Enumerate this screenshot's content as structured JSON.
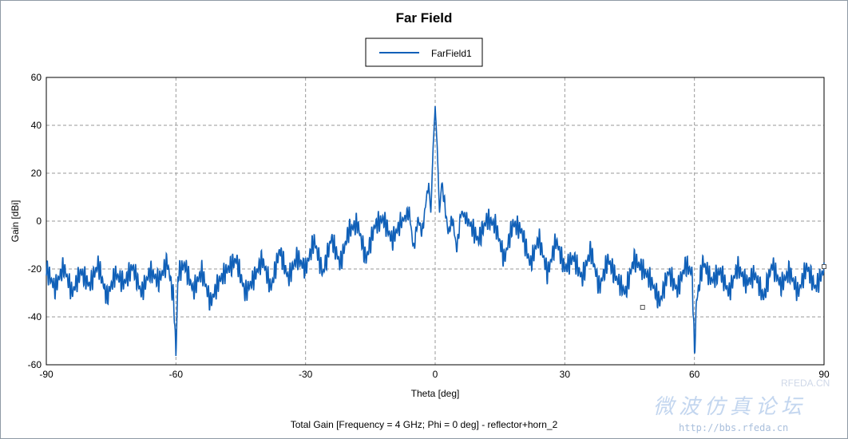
{
  "chart_data": {
    "type": "line",
    "title": "Far Field",
    "xlabel": "Theta [deg]",
    "ylabel": "Gain [dBi]",
    "caption": "Total Gain [Frequency = 4 GHz; Phi = 0 deg] - reflector+horn_2",
    "xlim": [
      -90,
      90
    ],
    "ylim": [
      -60,
      60
    ],
    "xticks": [
      -90,
      -60,
      -30,
      0,
      30,
      60,
      90
    ],
    "yticks": [
      -60,
      -40,
      -20,
      0,
      20,
      40,
      60
    ],
    "grid": true,
    "legend_position": "top-center",
    "series": [
      {
        "name": "FarField1",
        "color": "#1060b8",
        "x": [
          -90,
          -88,
          -86,
          -84,
          -82,
          -80,
          -78,
          -76,
          -74,
          -72,
          -70,
          -68,
          -66,
          -64,
          -62,
          -60.5,
          -60,
          -59.5,
          -58,
          -56,
          -54,
          -52,
          -50,
          -48,
          -46,
          -44,
          -42,
          -40,
          -38,
          -36,
          -34,
          -32,
          -30,
          -28,
          -26,
          -24,
          -22,
          -20,
          -18,
          -16,
          -14,
          -12,
          -10,
          -8,
          -6,
          -5,
          -4,
          -3,
          -2,
          -1.5,
          -1,
          -0.5,
          0,
          0.5,
          1,
          1.5,
          2,
          3,
          4,
          5,
          6,
          8,
          10,
          12,
          14,
          16,
          18,
          20,
          22,
          24,
          26,
          28,
          30,
          32,
          34,
          36,
          38,
          40,
          42,
          44,
          46,
          48,
          50,
          52,
          54,
          56,
          58,
          59.5,
          60,
          60.5,
          62,
          64,
          66,
          68,
          70,
          72,
          74,
          76,
          78,
          80,
          82,
          84,
          86,
          88,
          90
        ],
        "y": [
          -20,
          -28,
          -19,
          -30,
          -21,
          -27,
          -18,
          -32,
          -22,
          -26,
          -19,
          -30,
          -21,
          -25,
          -17,
          -33,
          -56,
          -22,
          -18,
          -29,
          -21,
          -34,
          -25,
          -20,
          -16,
          -30,
          -24,
          -16,
          -28,
          -12,
          -24,
          -15,
          -20,
          -8,
          -22,
          -7,
          -18,
          -4,
          -1,
          -16,
          -2,
          1,
          -8,
          -1,
          4,
          -12,
          1,
          -5,
          10,
          16,
          3,
          30,
          48,
          30,
          3,
          16,
          10,
          -5,
          1,
          -12,
          4,
          -1,
          -8,
          1,
          -2,
          -16,
          -1,
          -4,
          -18,
          -7,
          -22,
          -8,
          -20,
          -15,
          -24,
          -12,
          -28,
          -16,
          -24,
          -30,
          -16,
          -20,
          -25,
          -34,
          -21,
          -29,
          -18,
          -22,
          -56,
          -33,
          -17,
          -25,
          -21,
          -30,
          -19,
          -26,
          -22,
          -32,
          -18,
          -27,
          -21,
          -30,
          -19,
          -28,
          -20
        ]
      }
    ],
    "markers": [
      {
        "x": 48,
        "y": -36
      },
      {
        "x": 90,
        "y": -19
      }
    ]
  },
  "watermark": {
    "site": "RFEDA.CN",
    "chinese": "微波仿真论坛",
    "url": "http://bbs.rfeda.cn"
  }
}
